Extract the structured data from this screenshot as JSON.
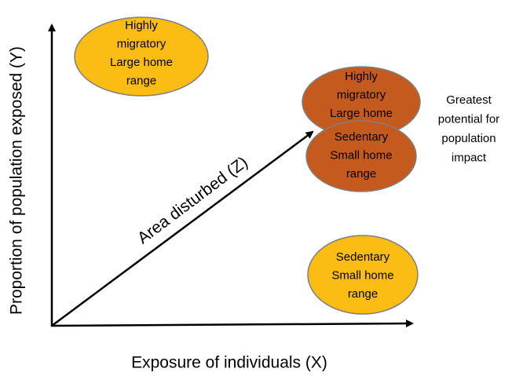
{
  "axes": {
    "y_label": "Proportion of population exposed (Y)",
    "x_label": "Exposure of individuals (X)",
    "z_label": "Area disturbed (Z)"
  },
  "nodes": [
    {
      "lines": [
        "Highly",
        "migratory",
        "Large home",
        "range"
      ]
    },
    {
      "lines": [
        "Highly",
        "migratory",
        "Large home"
      ]
    },
    {
      "lines": [
        "Sedentary",
        "Small home",
        "range"
      ]
    },
    {
      "lines": [
        "Sedentary",
        "Small home",
        "range"
      ]
    }
  ],
  "note": {
    "lines": [
      "Greatest",
      "potential for",
      "population",
      "impact"
    ]
  }
}
